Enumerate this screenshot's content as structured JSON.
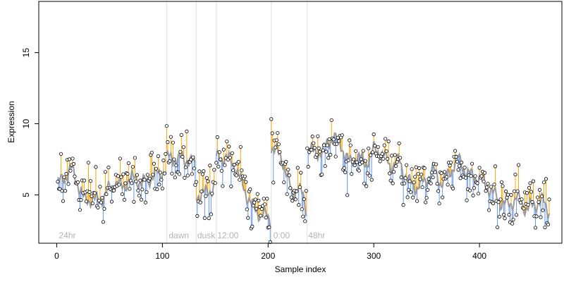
{
  "chart_data": {
    "type": "scatter",
    "xlabel": "Sample index",
    "ylabel": "Expression",
    "xlim": [
      -17,
      478
    ],
    "ylim": [
      1.6,
      18.6
    ],
    "x_ticks": [
      0,
      100,
      200,
      300,
      400
    ],
    "y_ticks": [
      5,
      10,
      15
    ],
    "grid": false,
    "condition_boundaries": [
      104,
      132,
      151,
      203,
      237
    ],
    "condition_labels": [
      {
        "text": "24hr",
        "x": 2
      },
      {
        "text": "dawn",
        "x": 106
      },
      {
        "text": "dusk",
        "x": 133
      },
      {
        "text": "12:00",
        "x": 152
      },
      {
        "text": "0:00",
        "x": 205
      },
      {
        "text": "48hr",
        "x": 238
      }
    ],
    "colors": {
      "observed_points": "#000000",
      "fitted_line": "#999999",
      "residual_above": "#ffa500",
      "residual_below": "#6495ed"
    },
    "anchors": [
      [
        1,
        5.8
      ],
      [
        8,
        6.3
      ],
      [
        14,
        6.8
      ],
      [
        20,
        5.8
      ],
      [
        26,
        4.6
      ],
      [
        32,
        4.7
      ],
      [
        38,
        4.6
      ],
      [
        44,
        4.8
      ],
      [
        50,
        5.5
      ],
      [
        56,
        5.9
      ],
      [
        62,
        5.5
      ],
      [
        68,
        6.0
      ],
      [
        74,
        6.2
      ],
      [
        80,
        5.8
      ],
      [
        86,
        6.0
      ],
      [
        92,
        6.4
      ],
      [
        98,
        6.5
      ],
      [
        103,
        6.8
      ],
      [
        104,
        7.6
      ],
      [
        110,
        7.6
      ],
      [
        116,
        7.5
      ],
      [
        122,
        7.5
      ],
      [
        128,
        7.3
      ],
      [
        131,
        7.1
      ],
      [
        132,
        5.0
      ],
      [
        138,
        5.0
      ],
      [
        144,
        5.3
      ],
      [
        150,
        5.6
      ],
      [
        151,
        7.6
      ],
      [
        157,
        7.6
      ],
      [
        163,
        7.5
      ],
      [
        169,
        7.0
      ],
      [
        175,
        5.8
      ],
      [
        181,
        4.8
      ],
      [
        187,
        4.0
      ],
      [
        193,
        3.6
      ],
      [
        199,
        3.5
      ],
      [
        202,
        3.3
      ],
      [
        203,
        8.4
      ],
      [
        208,
        8.0
      ],
      [
        213,
        7.6
      ],
      [
        218,
        6.3
      ],
      [
        223,
        5.0
      ],
      [
        228,
        5.6
      ],
      [
        233,
        4.9
      ],
      [
        236,
        4.0
      ],
      [
        237,
        8.5
      ],
      [
        245,
        7.8
      ],
      [
        255,
        8.4
      ],
      [
        262,
        9.2
      ],
      [
        270,
        8.3
      ],
      [
        278,
        7.2
      ],
      [
        285,
        7.8
      ],
      [
        292,
        7.1
      ],
      [
        300,
        8.2
      ],
      [
        308,
        7.9
      ],
      [
        316,
        7.0
      ],
      [
        324,
        7.4
      ],
      [
        332,
        6.0
      ],
      [
        340,
        5.5
      ],
      [
        348,
        5.9
      ],
      [
        356,
        6.8
      ],
      [
        364,
        5.8
      ],
      [
        372,
        6.6
      ],
      [
        380,
        7.6
      ],
      [
        388,
        6.5
      ],
      [
        396,
        6.3
      ],
      [
        404,
        5.9
      ],
      [
        412,
        5.2
      ],
      [
        420,
        4.5
      ],
      [
        428,
        4.3
      ],
      [
        436,
        4.8
      ],
      [
        444,
        4.0
      ],
      [
        452,
        4.3
      ],
      [
        460,
        4.6
      ],
      [
        465,
        3.9
      ]
    ],
    "n_samples": 466
  }
}
